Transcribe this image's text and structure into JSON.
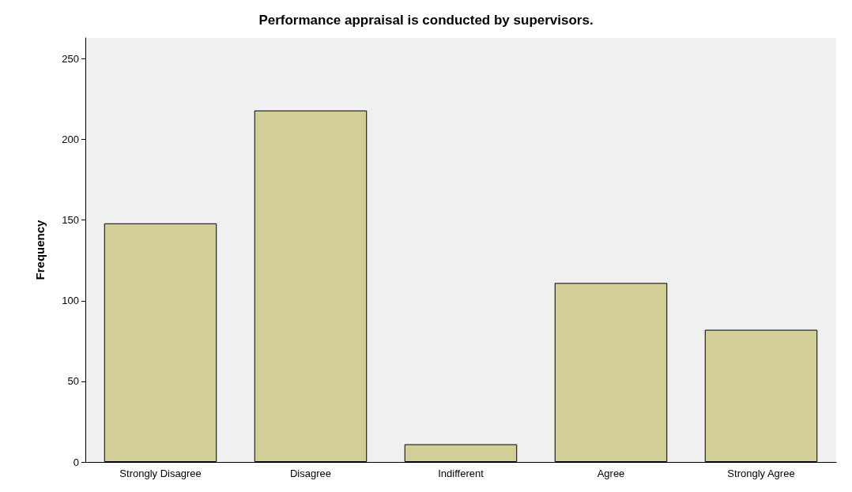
{
  "chart_data": {
    "type": "bar",
    "title": "Performance appraisal is conducted by supervisors.",
    "ylabel": "Frequency",
    "categories": [
      "Strongly Disagree",
      "Disagree",
      "Indifferent",
      "Agree",
      "Strongly Agree"
    ],
    "values": [
      148,
      218,
      11,
      111,
      82
    ],
    "color": "#d3ce97",
    "ylim": [
      0,
      263
    ],
    "yticks": [
      0,
      50,
      100,
      150,
      200,
      250
    ],
    "grid": false
  }
}
